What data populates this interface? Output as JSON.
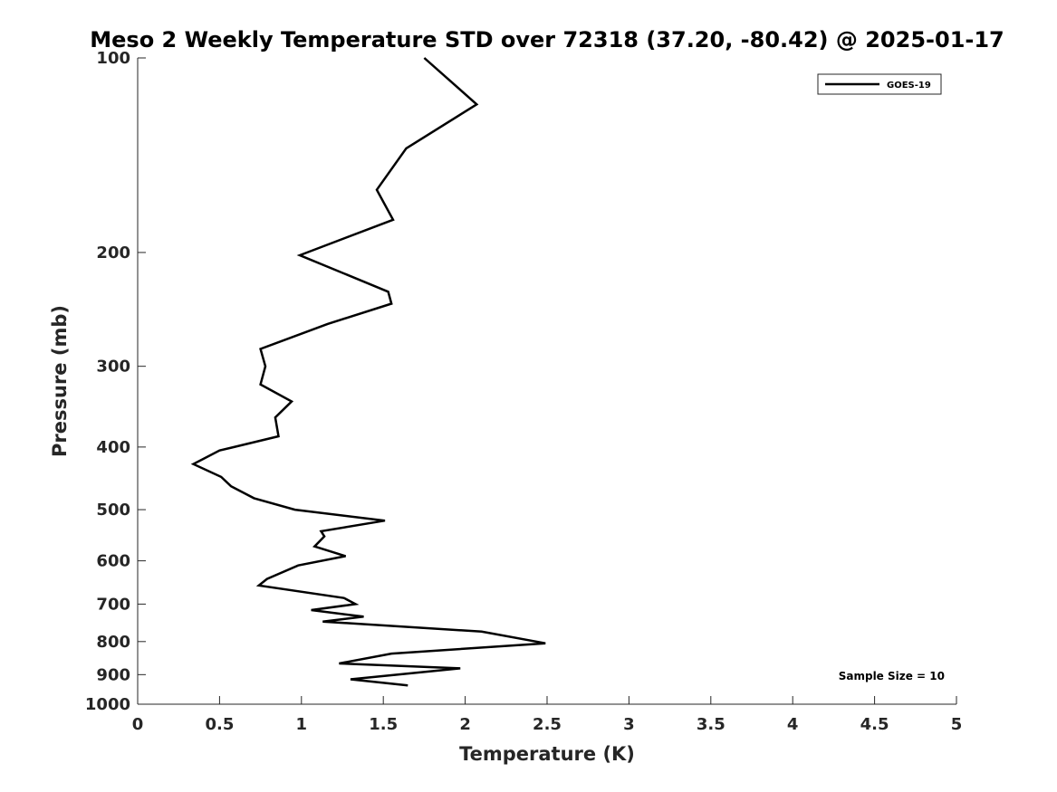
{
  "chart_data": {
    "type": "line",
    "title": "Meso 2 Weekly Temperature STD over 72318 (37.20, -80.42) @ 2025-01-17",
    "xlabel": "Temperature (K)",
    "ylabel": "Pressure (mb)",
    "xlim": [
      0,
      5
    ],
    "ylim": [
      100,
      1000
    ],
    "yscale": "log",
    "y_reversed": true,
    "x_ticks": [
      "0",
      "0.5",
      "1",
      "1.5",
      "2",
      "2.5",
      "3",
      "3.5",
      "4",
      "4.5",
      "5"
    ],
    "x_tick_values": [
      0,
      0.5,
      1,
      1.5,
      2,
      2.5,
      3,
      3.5,
      4,
      4.5,
      5
    ],
    "y_ticks": [
      "100",
      "200",
      "300",
      "400",
      "500",
      "600",
      "700",
      "800",
      "900",
      "1000"
    ],
    "y_tick_values": [
      100,
      200,
      300,
      400,
      500,
      600,
      700,
      800,
      900,
      1000
    ],
    "grid": false,
    "legend_position": "top-right",
    "series": [
      {
        "name": "GOES-19",
        "color": "#000000",
        "points": [
          [
            1.75,
            100
          ],
          [
            2.07,
            118
          ],
          [
            1.64,
            138
          ],
          [
            1.46,
            160
          ],
          [
            1.56,
            178
          ],
          [
            0.99,
            202
          ],
          [
            1.53,
            230
          ],
          [
            1.55,
            240
          ],
          [
            1.16,
            258
          ],
          [
            0.75,
            282
          ],
          [
            0.78,
            300
          ],
          [
            0.75,
            320
          ],
          [
            0.94,
            340
          ],
          [
            0.84,
            360
          ],
          [
            0.86,
            385
          ],
          [
            0.5,
            405
          ],
          [
            0.34,
            425
          ],
          [
            0.51,
            445
          ],
          [
            0.57,
            460
          ],
          [
            0.71,
            480
          ],
          [
            0.96,
            500
          ],
          [
            1.51,
            520
          ],
          [
            1.12,
            540
          ],
          [
            1.14,
            550
          ],
          [
            1.08,
            570
          ],
          [
            1.27,
            590
          ],
          [
            0.98,
            610
          ],
          [
            0.79,
            640
          ],
          [
            0.74,
            655
          ],
          [
            1.26,
            685
          ],
          [
            1.33,
            700
          ],
          [
            1.06,
            715
          ],
          [
            1.38,
            732
          ],
          [
            1.13,
            745
          ],
          [
            2.1,
            772
          ],
          [
            2.49,
            805
          ],
          [
            1.55,
            835
          ],
          [
            1.23,
            865
          ],
          [
            1.97,
            880
          ],
          [
            1.3,
            915
          ],
          [
            1.65,
            935
          ]
        ]
      }
    ],
    "annotations": [
      {
        "text": "Sample Size = 10",
        "position": "bottom-right"
      }
    ]
  }
}
